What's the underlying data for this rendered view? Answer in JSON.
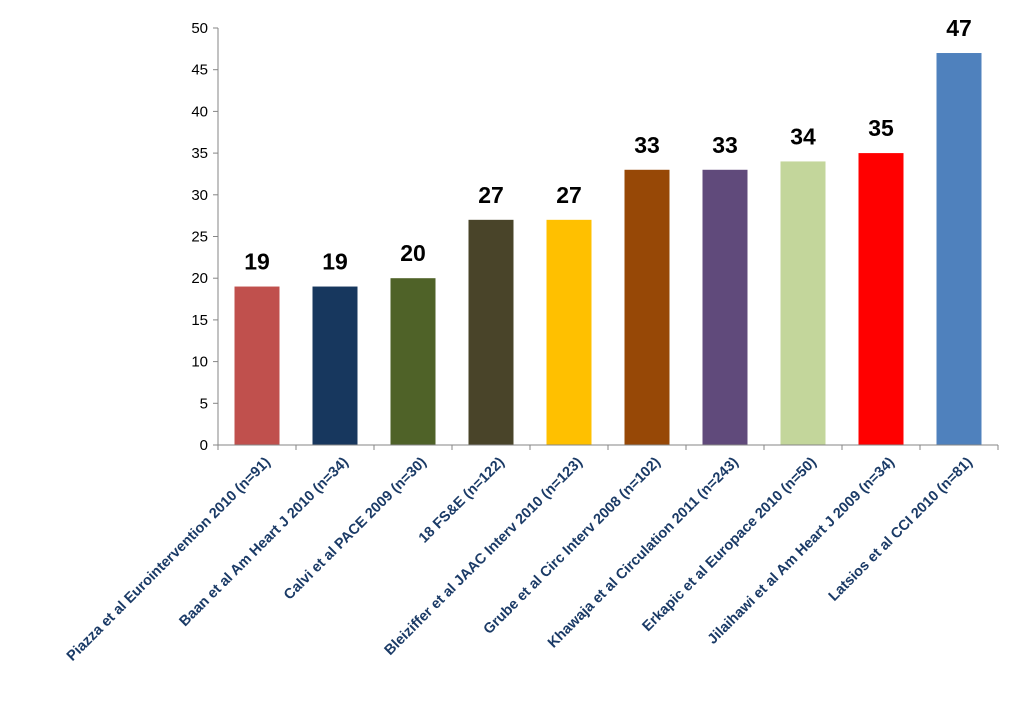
{
  "chart_data": {
    "type": "bar",
    "title": "",
    "xlabel": "",
    "ylabel": "",
    "ylim": [
      0,
      50
    ],
    "yticks": [
      0,
      5,
      10,
      15,
      20,
      25,
      30,
      35,
      40,
      45,
      50
    ],
    "grid": false,
    "legend": "none",
    "categories": [
      "Piazza et al Eurointervention 2010 (n=91)",
      "Baan et al Am Heart J 2010 (n=34)",
      "Calvi et al PACE 2009 (n=30)",
      "18 FS&E (n=122)",
      "Bleiziffer et al JAAC Interv 2010 (n=123)",
      "Grube et al Circ Interv 2008 (n=102)",
      "Khawaja et al Circulation 2011 (n=243)",
      "Erkapic et al Europace 2010 (n=50)",
      "Jilaihawi et al Am Heart J 2009 (n=34)",
      "Latsios et al CCI 2010 (n=81)"
    ],
    "values": [
      19,
      19,
      20,
      27,
      27,
      33,
      33,
      34,
      35,
      47
    ],
    "data_labels": [
      "19",
      "19",
      "20",
      "27",
      "27",
      "33",
      "33",
      "34",
      "35",
      "47"
    ],
    "colors": [
      "#c0504d",
      "#17375e",
      "#4f6228",
      "#494429",
      "#ffc000",
      "#974806",
      "#604a7b",
      "#c3d69b",
      "#ff0000",
      "#4f81bd"
    ],
    "axis_color": "#868686",
    "category_label_color": "#1a3a66"
  }
}
